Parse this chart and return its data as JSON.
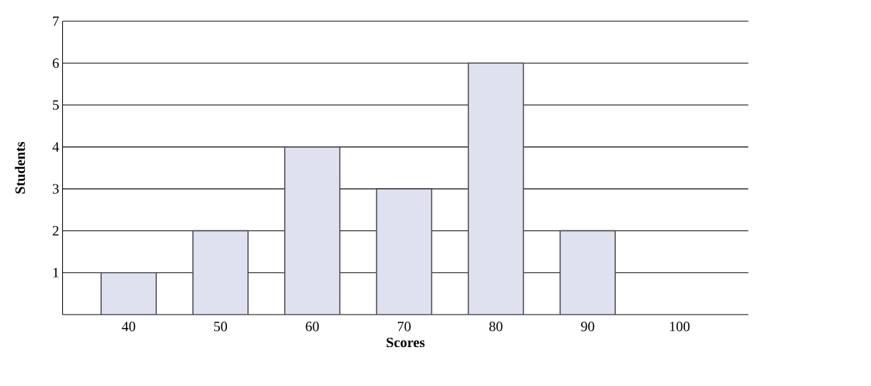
{
  "chart_data": {
    "type": "bar",
    "xlabel": "Scores",
    "ylabel": "Students",
    "categories": [
      "40",
      "50",
      "60",
      "70",
      "80",
      "90",
      "100"
    ],
    "values": [
      1,
      2,
      4,
      3,
      6,
      2,
      null
    ],
    "color": "#dfe1f0",
    "ylim": [
      0,
      7
    ],
    "yticks": [
      1,
      2,
      3,
      4,
      5,
      6,
      7
    ],
    "grid": "y"
  }
}
